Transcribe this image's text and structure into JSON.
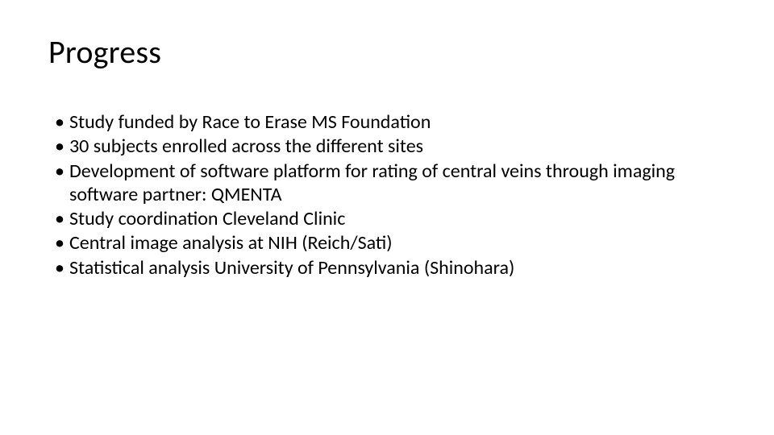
{
  "slide": {
    "title": "Progress",
    "title_fontsize": 40,
    "title_color": "#000000",
    "bullets": [
      "Study funded by Race to Erase MS Foundation",
      "30 subjects enrolled across the different sites",
      "Development of software platform for rating of central veins through imaging software partner: QMENTA",
      "Study coordination Cleveland Clinic",
      "Central image analysis at NIH (Reich/Sati)",
      "Statistical analysis University of Pennsylvania (Shinohara)"
    ],
    "bullet_fontsize": 24,
    "bullet_color": "#000000",
    "background_color": "#ffffff",
    "font_family": "Calibri"
  }
}
